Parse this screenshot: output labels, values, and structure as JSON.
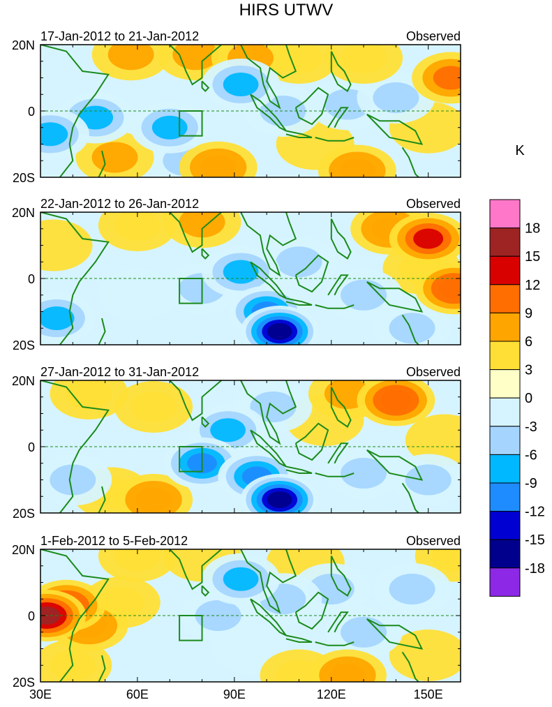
{
  "title": "HIRS UTWV",
  "colorbar": {
    "unit_label": "K",
    "levels": [
      "18",
      "15",
      "12",
      "9",
      "6",
      "3",
      "0",
      "-3",
      "-6",
      "-9",
      "-12",
      "-15",
      "-18"
    ],
    "colors": [
      "#ff77c8",
      "#9e2424",
      "#d90000",
      "#ff6e00",
      "#ffa500",
      "#ffdf36",
      "#ffffc8",
      "#d6f4ff",
      "#a5d5ff",
      "#00b8ff",
      "#1e8cff",
      "#0000d2",
      "#00008c",
      "#8c28e6"
    ]
  },
  "chart_data": [
    {
      "type": "heatmap",
      "panel_title": "17-Jan-2012 to 21-Jan-2012",
      "right_label": "Observed",
      "x_ticks": [
        "30E",
        "60E",
        "90E",
        "120E",
        "150E"
      ],
      "y_ticks": [
        "20N",
        "0",
        "20S"
      ],
      "xlim": [
        30,
        160
      ],
      "ylim": [
        -20,
        20
      ],
      "box_region": {
        "lon": [
          73,
          80
        ],
        "lat": [
          -7.5,
          0
        ]
      },
      "anomaly_blobs": [
        {
          "lon": 47,
          "lat": -2,
          "value": -8
        },
        {
          "lon": 33,
          "lat": -7,
          "value": -9
        },
        {
          "lon": 70,
          "lat": -5,
          "value": -9
        },
        {
          "lon": 75,
          "lat": -15,
          "value": -6
        },
        {
          "lon": 92,
          "lat": 8,
          "value": -8
        },
        {
          "lon": 105,
          "lat": 0,
          "value": -4
        },
        {
          "lon": 125,
          "lat": 2,
          "value": -4
        },
        {
          "lon": 140,
          "lat": 4,
          "value": -4
        },
        {
          "lon": 58,
          "lat": 17,
          "value": 6
        },
        {
          "lon": 78,
          "lat": 17,
          "value": 6
        },
        {
          "lon": 85,
          "lat": -17,
          "value": 8
        },
        {
          "lon": 95,
          "lat": 16,
          "value": 6
        },
        {
          "lon": 110,
          "lat": 16,
          "value": 5
        },
        {
          "lon": 130,
          "lat": 16,
          "value": 5
        },
        {
          "lon": 128,
          "lat": -18,
          "value": 8
        },
        {
          "lon": 157,
          "lat": 10,
          "value": 9
        },
        {
          "lon": 150,
          "lat": -5,
          "value": 3
        },
        {
          "lon": 53,
          "lat": -14,
          "value": 6
        },
        {
          "lon": 115,
          "lat": -10,
          "value": 3
        }
      ]
    },
    {
      "type": "heatmap",
      "panel_title": "22-Jan-2012 to 26-Jan-2012",
      "right_label": "Observed",
      "x_ticks": [
        "30E",
        "60E",
        "90E",
        "120E",
        "150E"
      ],
      "y_ticks": [
        "20N",
        "0",
        "20S"
      ],
      "xlim": [
        30,
        160
      ],
      "ylim": [
        -20,
        20
      ],
      "box_region": {
        "lon": [
          73,
          80
        ],
        "lat": [
          -7.5,
          0
        ]
      },
      "anomaly_blobs": [
        {
          "lon": 104,
          "lat": -16,
          "value": -18
        },
        {
          "lon": 100,
          "lat": -10,
          "value": -10
        },
        {
          "lon": 92,
          "lat": 2,
          "value": -8
        },
        {
          "lon": 110,
          "lat": 5,
          "value": -6
        },
        {
          "lon": 80,
          "lat": -3,
          "value": -6
        },
        {
          "lon": 60,
          "lat": -5,
          "value": -3
        },
        {
          "lon": 35,
          "lat": -12,
          "value": -8
        },
        {
          "lon": 130,
          "lat": -5,
          "value": -6
        },
        {
          "lon": 145,
          "lat": -15,
          "value": -6
        },
        {
          "lon": 150,
          "lat": 12,
          "value": 12
        },
        {
          "lon": 138,
          "lat": 15,
          "value": 8
        },
        {
          "lon": 158,
          "lat": -3,
          "value": 10
        },
        {
          "lon": 80,
          "lat": 17,
          "value": 6
        },
        {
          "lon": 60,
          "lat": 16,
          "value": 4
        },
        {
          "lon": 34,
          "lat": 10,
          "value": 3
        },
        {
          "lon": 148,
          "lat": 3,
          "value": 4
        }
      ]
    },
    {
      "type": "heatmap",
      "panel_title": "27-Jan-2012 to 31-Jan-2012",
      "right_label": "Observed",
      "x_ticks": [
        "30E",
        "60E",
        "90E",
        "120E",
        "150E"
      ],
      "y_ticks": [
        "20N",
        "0",
        "20S"
      ],
      "xlim": [
        30,
        160
      ],
      "ylim": [
        -20,
        20
      ],
      "box_region": {
        "lon": [
          73,
          80
        ],
        "lat": [
          -7.5,
          0
        ]
      },
      "anomaly_blobs": [
        {
          "lon": 104,
          "lat": -16,
          "value": -18
        },
        {
          "lon": 97,
          "lat": -9,
          "value": -11
        },
        {
          "lon": 88,
          "lat": 5,
          "value": -8
        },
        {
          "lon": 80,
          "lat": -5,
          "value": -10
        },
        {
          "lon": 102,
          "lat": 12,
          "value": -6
        },
        {
          "lon": 130,
          "lat": -8,
          "value": -6
        },
        {
          "lon": 150,
          "lat": -10,
          "value": -6
        },
        {
          "lon": 40,
          "lat": -10,
          "value": -6
        },
        {
          "lon": 65,
          "lat": -16,
          "value": 8
        },
        {
          "lon": 52,
          "lat": -14,
          "value": 5
        },
        {
          "lon": 140,
          "lat": 14,
          "value": 10
        },
        {
          "lon": 125,
          "lat": 16,
          "value": 6
        },
        {
          "lon": 65,
          "lat": 12,
          "value": 5
        },
        {
          "lon": 45,
          "lat": 16,
          "value": 4
        },
        {
          "lon": 118,
          "lat": 8,
          "value": 3
        },
        {
          "lon": 155,
          "lat": 2,
          "value": 3
        }
      ]
    },
    {
      "type": "heatmap",
      "panel_title": "1-Feb-2012 to 5-Feb-2012",
      "right_label": "Observed",
      "x_ticks": [
        "30E",
        "60E",
        "90E",
        "120E",
        "150E"
      ],
      "y_ticks": [
        "20N",
        "0",
        "20S"
      ],
      "xlim": [
        30,
        160
      ],
      "ylim": [
        -20,
        20
      ],
      "box_region": {
        "lon": [
          73,
          80
        ],
        "lat": [
          -7.5,
          0
        ]
      },
      "anomaly_blobs": [
        {
          "lon": 32,
          "lat": 0,
          "value": 15
        },
        {
          "lon": 38,
          "lat": 3,
          "value": 10
        },
        {
          "lon": 45,
          "lat": -3,
          "value": 7
        },
        {
          "lon": 55,
          "lat": 4,
          "value": 5
        },
        {
          "lon": 40,
          "lat": -15,
          "value": 4
        },
        {
          "lon": 92,
          "lat": 11,
          "value": -8
        },
        {
          "lon": 85,
          "lat": 0,
          "value": -4
        },
        {
          "lon": 105,
          "lat": 5,
          "value": -6
        },
        {
          "lon": 120,
          "lat": 8,
          "value": -5
        },
        {
          "lon": 145,
          "lat": 8,
          "value": -6
        },
        {
          "lon": 130,
          "lat": -5,
          "value": -4
        },
        {
          "lon": 95,
          "lat": -10,
          "value": -3
        },
        {
          "lon": 125,
          "lat": -18,
          "value": 8
        },
        {
          "lon": 110,
          "lat": -18,
          "value": 5
        },
        {
          "lon": 60,
          "lat": 18,
          "value": 4
        },
        {
          "lon": 80,
          "lat": 18,
          "value": 3
        },
        {
          "lon": 112,
          "lat": 16,
          "value": 3
        },
        {
          "lon": 158,
          "lat": 18,
          "value": 5
        },
        {
          "lon": 150,
          "lat": -12,
          "value": 3
        }
      ]
    }
  ]
}
